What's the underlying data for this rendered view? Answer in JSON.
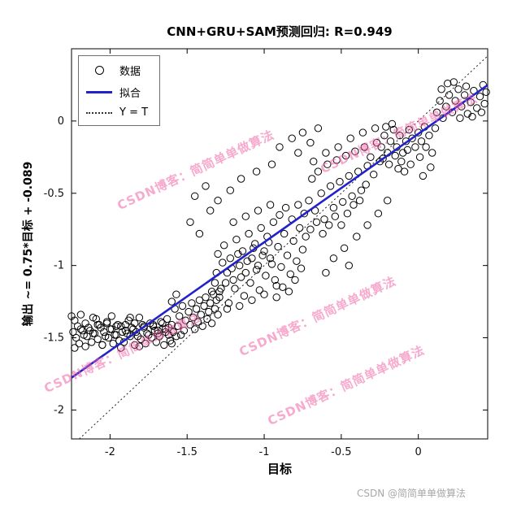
{
  "chart": {
    "title": "CNN+GRU+SAM预测回归: R=0.949",
    "xlabel": "目标",
    "ylabel": "输出 ~= 0.75*目标 + -0.089"
  },
  "legend": {
    "data": "数据",
    "fit": "拟合",
    "identity": "Y = T"
  },
  "watermark": {
    "text": "CSDN博客：简简单单做算法",
    "color": "#f064a5"
  },
  "footer": {
    "text": "CSDN @简简单单做算法"
  },
  "chart_data": {
    "type": "scatter",
    "title": "CNN+GRU+SAM预测回归: R=0.949",
    "xlabel": "目标",
    "ylabel": "输出 ~= 0.75*目标 + -0.089",
    "r_value": 0.949,
    "x_range": [
      -2.25,
      0.45
    ],
    "y_range": [
      -2.2,
      0.5
    ],
    "x_ticks": [
      -2,
      -1.5,
      -1,
      -0.5,
      0
    ],
    "y_ticks": [
      0,
      -0.5,
      -1,
      -1.5,
      -2
    ],
    "grid": false,
    "legend_position": "top-left",
    "fit_line": {
      "slope": 0.75,
      "intercept": -0.089,
      "color": "#2222cc"
    },
    "identity_line": {
      "style": "dotted",
      "color": "#222222"
    },
    "marker": {
      "shape": "circle",
      "fill": "none",
      "stroke": "#000000"
    },
    "points": [
      [
        -2.23,
        -1.38
      ],
      [
        -2.16,
        -1.4
      ],
      [
        -2.09,
        -1.37
      ],
      [
        -2.02,
        -1.39
      ],
      [
        -1.95,
        -1.41
      ],
      [
        -1.88,
        -1.38
      ],
      [
        -1.81,
        -1.36
      ],
      [
        -1.74,
        -1.4
      ],
      [
        -1.67,
        -1.39
      ],
      [
        -1.63,
        -1.37
      ],
      [
        -2.21,
        -1.42
      ],
      [
        -2.14,
        -1.43
      ],
      [
        -2.07,
        -1.41
      ],
      [
        -2.0,
        -1.44
      ],
      [
        -1.93,
        -1.42
      ],
      [
        -1.86,
        -1.43
      ],
      [
        -1.79,
        -1.41
      ],
      [
        -1.72,
        -1.42
      ],
      [
        -1.66,
        -1.44
      ],
      [
        -1.62,
        -1.43
      ],
      [
        -2.24,
        -1.46
      ],
      [
        -2.18,
        -1.45
      ],
      [
        -2.11,
        -1.47
      ],
      [
        -2.04,
        -1.46
      ],
      [
        -1.97,
        -1.48
      ],
      [
        -1.9,
        -1.45
      ],
      [
        -1.83,
        -1.46
      ],
      [
        -1.76,
        -1.47
      ],
      [
        -1.69,
        -1.45
      ],
      [
        -1.64,
        -1.46
      ],
      [
        -2.22,
        -1.5
      ],
      [
        -2.15,
        -1.49
      ],
      [
        -2.08,
        -1.51
      ],
      [
        -2.01,
        -1.5
      ],
      [
        -1.94,
        -1.52
      ],
      [
        -1.87,
        -1.49
      ],
      [
        -1.8,
        -1.51
      ],
      [
        -1.73,
        -1.5
      ],
      [
        -1.68,
        -1.49
      ],
      [
        -1.61,
        -1.52
      ],
      [
        -2.2,
        -1.54
      ],
      [
        -2.12,
        -1.53
      ],
      [
        -2.05,
        -1.55
      ],
      [
        -1.98,
        -1.54
      ],
      [
        -1.91,
        -1.53
      ],
      [
        -1.84,
        -1.55
      ],
      [
        -1.77,
        -1.54
      ],
      [
        -1.7,
        -1.53
      ],
      [
        -1.65,
        -1.55
      ],
      [
        -1.6,
        -1.54
      ],
      [
        -2.19,
        -1.44
      ],
      [
        -2.13,
        -1.45
      ],
      [
        -2.06,
        -1.43
      ],
      [
        -1.99,
        -1.44
      ],
      [
        -1.92,
        -1.46
      ],
      [
        -1.85,
        -1.44
      ],
      [
        -1.78,
        -1.43
      ],
      [
        -1.71,
        -1.45
      ],
      [
        -1.64,
        -1.44
      ],
      [
        -1.59,
        -1.46
      ],
      [
        -2.17,
        -1.48
      ],
      [
        -2.1,
        -1.47
      ],
      [
        -2.03,
        -1.49
      ],
      [
        -1.96,
        -1.48
      ],
      [
        -1.89,
        -1.47
      ],
      [
        -1.82,
        -1.49
      ],
      [
        -1.75,
        -1.48
      ],
      [
        -1.69,
        -1.47
      ],
      [
        -1.62,
        -1.48
      ],
      [
        -1.57,
        -1.49
      ],
      [
        -2.08,
        -1.41
      ],
      [
        -2.02,
        -1.4
      ],
      [
        -1.96,
        -1.42
      ],
      [
        -1.9,
        -1.41
      ],
      [
        -1.84,
        -1.4
      ],
      [
        -1.78,
        -1.42
      ],
      [
        -1.72,
        -1.41
      ],
      [
        -1.66,
        -1.4
      ],
      [
        -1.6,
        -1.41
      ],
      [
        -1.56,
        -1.42
      ],
      [
        -2.25,
        -1.35
      ],
      [
        -2.23,
        -1.57
      ],
      [
        -2.19,
        -1.34
      ],
      [
        -2.16,
        -1.56
      ],
      [
        -2.11,
        -1.36
      ],
      [
        -2.05,
        -1.55
      ],
      [
        -1.99,
        -1.35
      ],
      [
        -1.93,
        -1.57
      ],
      [
        -1.87,
        -1.36
      ],
      [
        -1.81,
        -1.56
      ],
      [
        -1.58,
        -1.3
      ],
      [
        -1.55,
        -1.35
      ],
      [
        -1.53,
        -1.28
      ],
      [
        -1.51,
        -1.38
      ],
      [
        -1.49,
        -1.32
      ],
      [
        -1.47,
        -1.26
      ],
      [
        -1.46,
        -1.36
      ],
      [
        -1.44,
        -1.3
      ],
      [
        -1.42,
        -1.24
      ],
      [
        -1.41,
        -1.34
      ],
      [
        -1.39,
        -1.28
      ],
      [
        -1.38,
        -1.22
      ],
      [
        -1.36,
        -1.32
      ],
      [
        -1.35,
        -1.26
      ],
      [
        -1.33,
        -1.2
      ],
      [
        -1.32,
        -1.3
      ],
      [
        -1.56,
        -1.42
      ],
      [
        -1.52,
        -1.45
      ],
      [
        -1.48,
        -1.41
      ],
      [
        -1.45,
        -1.44
      ],
      [
        -1.43,
        -1.39
      ],
      [
        -1.4,
        -1.42
      ],
      [
        -1.37,
        -1.37
      ],
      [
        -1.34,
        -1.4
      ],
      [
        -1.31,
        -1.24
      ],
      [
        -1.3,
        -1.34
      ],
      [
        -1.29,
        -1.18
      ],
      [
        -1.6,
        -1.25
      ],
      [
        -1.57,
        -1.2
      ],
      [
        -1.54,
        -1.48
      ],
      [
        -1.34,
        -1.18
      ],
      [
        -1.31,
        -1.05
      ],
      [
        -1.29,
        -1.22
      ],
      [
        -1.27,
        -0.98
      ],
      [
        -1.25,
        -1.12
      ],
      [
        -1.23,
        -1.26
      ],
      [
        -1.21,
        -1.02
      ],
      [
        -1.19,
        -1.16
      ],
      [
        -1.17,
        -0.92
      ],
      [
        -1.15,
        -1.08
      ],
      [
        -1.13,
        -1.21
      ],
      [
        -1.11,
        -0.97
      ],
      [
        -1.09,
        -1.12
      ],
      [
        -1.07,
        -0.88
      ],
      [
        -1.05,
        -1.03
      ],
      [
        -1.03,
        -1.17
      ],
      [
        -1.01,
        -0.93
      ],
      [
        -0.99,
        -1.07
      ],
      [
        -0.97,
        -0.84
      ],
      [
        -0.95,
        -0.99
      ],
      [
        -1.32,
        -1.12
      ],
      [
        -1.28,
        -1.16
      ],
      [
        -1.24,
        -1.05
      ],
      [
        -1.2,
        -1.1
      ],
      [
        -1.16,
        -1.0
      ],
      [
        -1.12,
        -1.05
      ],
      [
        -1.08,
        -0.95
      ],
      [
        -1.04,
        -1.0
      ],
      [
        -1.0,
        -0.9
      ],
      [
        -0.96,
        -0.95
      ],
      [
        -0.93,
        -1.1
      ],
      [
        -0.91,
        -0.87
      ],
      [
        -0.89,
        -1.01
      ],
      [
        -0.87,
        -0.78
      ],
      [
        -0.85,
        -0.93
      ],
      [
        -0.83,
        -1.06
      ],
      [
        -0.81,
        -0.83
      ],
      [
        -0.79,
        -0.97
      ],
      [
        -0.77,
        -0.74
      ],
      [
        -0.75,
        -0.89
      ],
      [
        -1.3,
        -0.92
      ],
      [
        -1.26,
        -0.86
      ],
      [
        -1.22,
        -0.95
      ],
      [
        -1.18,
        -0.82
      ],
      [
        -1.14,
        -0.9
      ],
      [
        -1.1,
        -0.78
      ],
      [
        -1.06,
        -0.85
      ],
      [
        -1.02,
        -0.74
      ],
      [
        -0.98,
        -0.8
      ],
      [
        -0.94,
        -0.7
      ],
      [
        -0.92,
        -1.22
      ],
      [
        -0.88,
        -1.15
      ],
      [
        -0.84,
        -1.18
      ],
      [
        -0.8,
        -1.1
      ],
      [
        -0.76,
        -1.02
      ],
      [
        -0.9,
        -0.65
      ],
      [
        -0.86,
        -0.6
      ],
      [
        -0.82,
        -0.68
      ],
      [
        -0.78,
        -0.58
      ],
      [
        -0.74,
        -0.64
      ],
      [
        -1.24,
        -1.3
      ],
      [
        -1.16,
        -1.28
      ],
      [
        -1.08,
        -1.24
      ],
      [
        -1.0,
        -1.2
      ],
      [
        -0.92,
        -1.14
      ],
      [
        -1.2,
        -0.7
      ],
      [
        -1.12,
        -0.66
      ],
      [
        -1.04,
        -0.62
      ],
      [
        -0.96,
        -0.58
      ],
      [
        -0.73,
        -0.8
      ],
      [
        -0.71,
        -0.55
      ],
      [
        -0.69,
        -0.4
      ],
      [
        -0.67,
        -0.62
      ],
      [
        -0.65,
        -0.35
      ],
      [
        -0.63,
        -0.5
      ],
      [
        -0.61,
        -0.68
      ],
      [
        -0.59,
        -0.3
      ],
      [
        -0.57,
        -0.45
      ],
      [
        -0.55,
        -0.6
      ],
      [
        -0.53,
        -0.27
      ],
      [
        -0.51,
        -0.42
      ],
      [
        -0.49,
        -0.56
      ],
      [
        -0.47,
        -0.24
      ],
      [
        -0.45,
        -0.38
      ],
      [
        -0.43,
        -0.52
      ],
      [
        -0.41,
        -0.21
      ],
      [
        -0.39,
        -0.35
      ],
      [
        -0.37,
        -0.48
      ],
      [
        -0.35,
        -0.18
      ],
      [
        -0.33,
        -0.31
      ],
      [
        -0.7,
        -0.75
      ],
      [
        -0.66,
        -0.7
      ],
      [
        -0.62,
        -0.78
      ],
      [
        -0.58,
        -0.72
      ],
      [
        -0.54,
        -0.66
      ],
      [
        -0.5,
        -0.72
      ],
      [
        -0.46,
        -0.64
      ],
      [
        -0.42,
        -0.58
      ],
      [
        -0.38,
        -0.55
      ],
      [
        -0.34,
        -0.44
      ],
      [
        -0.31,
        -0.25
      ],
      [
        -0.29,
        -0.37
      ],
      [
        -0.27,
        -0.15
      ],
      [
        -0.25,
        -0.28
      ],
      [
        -0.68,
        -0.28
      ],
      [
        -0.6,
        -0.22
      ],
      [
        -0.52,
        -0.18
      ],
      [
        -0.44,
        -0.12
      ],
      [
        -0.36,
        -0.08
      ],
      [
        -0.28,
        -0.05
      ],
      [
        -0.24,
        -0.18
      ],
      [
        -0.22,
        -0.1
      ],
      [
        -0.2,
        -0.22
      ],
      [
        -0.18,
        -0.14
      ],
      [
        -0.16,
        -0.06
      ],
      [
        -0.14,
        -0.18
      ],
      [
        -0.12,
        -0.1
      ],
      [
        -0.1,
        -0.22
      ],
      [
        -0.08,
        -0.14
      ],
      [
        -0.06,
        -0.06
      ],
      [
        -0.23,
        -0.26
      ],
      [
        -0.19,
        -0.3
      ],
      [
        -0.15,
        -0.24
      ],
      [
        -0.11,
        -0.28
      ],
      [
        -0.07,
        -0.2
      ],
      [
        -0.04,
        -0.12
      ],
      [
        -0.02,
        -0.18
      ],
      [
        0.0,
        -0.08
      ],
      [
        0.02,
        -0.14
      ],
      [
        0.04,
        -0.04
      ],
      [
        -0.21,
        -0.04
      ],
      [
        -0.17,
        -0.02
      ],
      [
        -0.13,
        -0.33
      ],
      [
        -0.09,
        -0.35
      ],
      [
        -0.05,
        -0.3
      ],
      [
        0.01,
        -0.25
      ],
      [
        0.05,
        -0.18
      ],
      [
        0.07,
        -0.1
      ],
      [
        0.09,
        -0.22
      ],
      [
        0.11,
        -0.05
      ],
      [
        0.03,
        -0.38
      ],
      [
        0.08,
        -0.32
      ],
      [
        0.12,
        0.06
      ],
      [
        0.14,
        0.14
      ],
      [
        0.16,
        0.02
      ],
      [
        0.18,
        0.1
      ],
      [
        0.2,
        0.18
      ],
      [
        0.22,
        0.06
      ],
      [
        0.24,
        0.14
      ],
      [
        0.26,
        0.22
      ],
      [
        0.28,
        0.1
      ],
      [
        0.3,
        0.18
      ],
      [
        0.32,
        0.05
      ],
      [
        0.34,
        0.13
      ],
      [
        0.36,
        0.21
      ],
      [
        0.38,
        0.09
      ],
      [
        0.4,
        0.17
      ],
      [
        0.42,
        0.25
      ],
      [
        0.43,
        0.12
      ],
      [
        0.44,
        0.2
      ],
      [
        0.15,
        0.22
      ],
      [
        0.19,
        0.26
      ],
      [
        0.23,
        0.27
      ],
      [
        0.27,
        0.02
      ],
      [
        0.31,
        0.24
      ],
      [
        0.35,
        0.03
      ],
      [
        0.41,
        0.06
      ],
      [
        -1.45,
        -0.52
      ],
      [
        -1.38,
        -0.45
      ],
      [
        -1.3,
        -0.55
      ],
      [
        -1.22,
        -0.48
      ],
      [
        -1.35,
        -0.62
      ],
      [
        -1.15,
        -0.4
      ],
      [
        -1.05,
        -0.35
      ],
      [
        -0.95,
        -0.3
      ],
      [
        -1.48,
        -0.7
      ],
      [
        -1.42,
        -0.78
      ],
      [
        -0.55,
        -0.95
      ],
      [
        -0.48,
        -0.88
      ],
      [
        -0.4,
        -0.8
      ],
      [
        -0.33,
        -0.72
      ],
      [
        -0.26,
        -0.64
      ],
      [
        -0.2,
        -0.55
      ],
      [
        -0.6,
        -1.05
      ],
      [
        -0.45,
        -1.0
      ],
      [
        -0.9,
        -0.18
      ],
      [
        -0.82,
        -0.12
      ],
      [
        -0.75,
        -0.08
      ],
      [
        -0.7,
        -0.15
      ],
      [
        -0.65,
        -0.05
      ],
      [
        -0.78,
        -0.22
      ]
    ]
  }
}
